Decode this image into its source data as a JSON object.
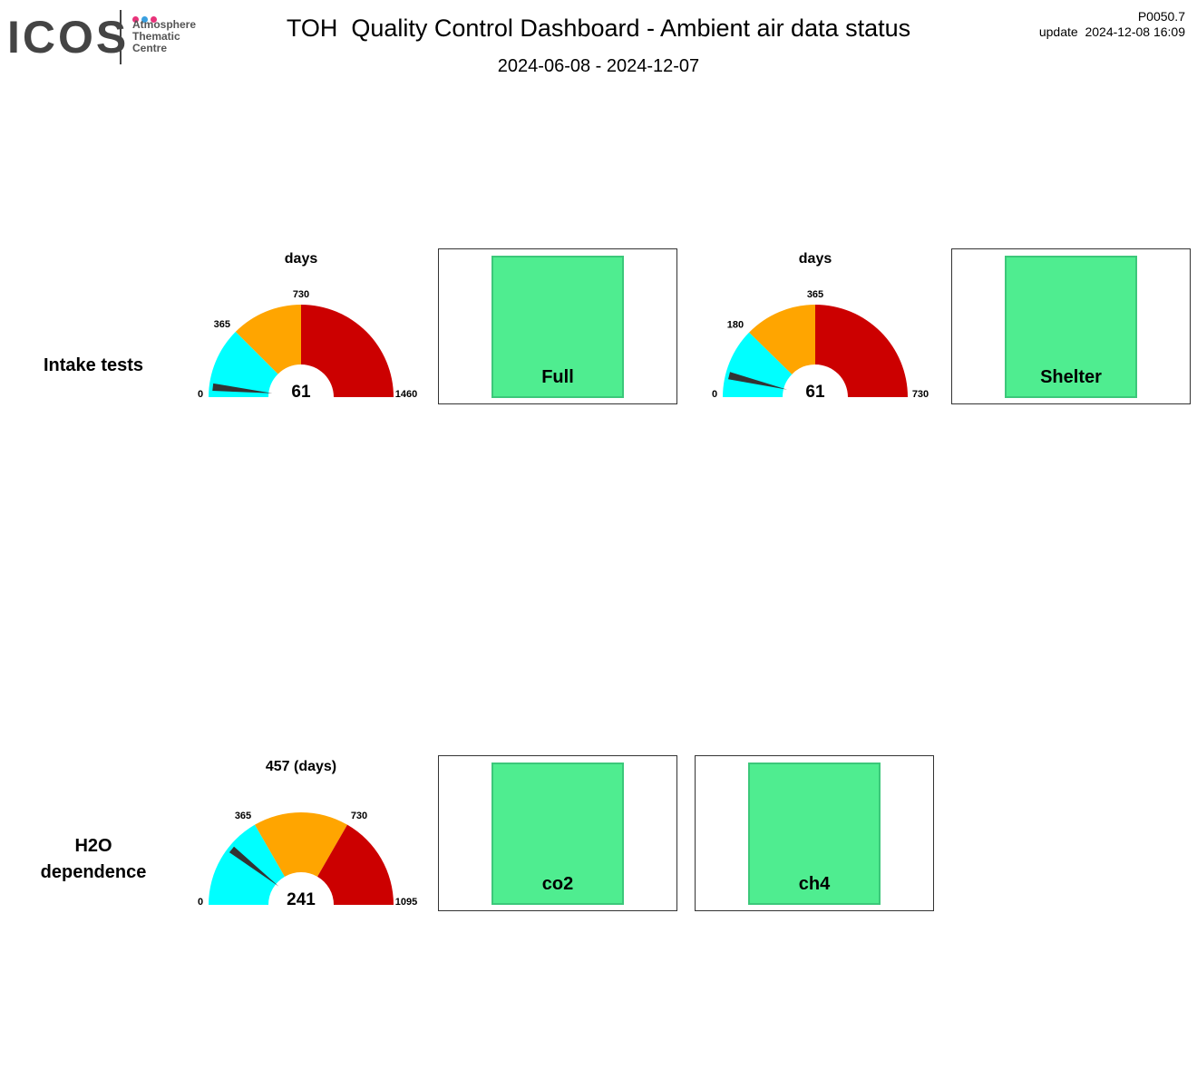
{
  "header": {
    "logo": {
      "word": "ICOS",
      "lines": [
        "Atmosphere",
        "Thematic",
        "Centre"
      ],
      "dot_colors": [
        "#e8337a",
        "#3aa0e0",
        "#e8337a"
      ]
    },
    "title": "TOH  Quality Control Dashboard - Ambient air data status",
    "period": "2024-06-08 - 2024-12-07",
    "version": "P0050.7",
    "update": "update  2024-12-08 16:09"
  },
  "colors": {
    "low": "#00ffff",
    "mid": "#ffa500",
    "high": "#cc0000",
    "ok": "#4fed90",
    "needle": "#333333"
  },
  "rows": [
    {
      "label_lines": [
        "Intake tests"
      ]
    },
    {
      "label_lines": [
        "H2O",
        "dependence"
      ]
    }
  ],
  "gauges": {
    "intake_full": {
      "title": "days",
      "value": 61,
      "value_label": "61",
      "min": 0,
      "max": 1460,
      "bands": [
        {
          "to": 365,
          "color": "low"
        },
        {
          "to": 730,
          "color": "mid"
        },
        {
          "to": 1460,
          "color": "high"
        }
      ],
      "tick_labels": {
        "min": "0",
        "t1": "365",
        "t2": "730",
        "max": "1460"
      }
    },
    "intake_shelter": {
      "title": "days",
      "value": 61,
      "value_label": "61",
      "min": 0,
      "max": 730,
      "bands": [
        {
          "to": 180,
          "color": "low"
        },
        {
          "to": 365,
          "color": "mid"
        },
        {
          "to": 730,
          "color": "high"
        }
      ],
      "tick_labels": {
        "min": "0",
        "t1": "180",
        "t2": "365",
        "max": "730"
      }
    },
    "h2o": {
      "title": "457 (days)",
      "value": 241,
      "value_label": "241",
      "min": 0,
      "max": 1095,
      "bands": [
        {
          "to": 365,
          "color": "low"
        },
        {
          "to": 730,
          "color": "mid"
        },
        {
          "to": 1095,
          "color": "high"
        }
      ],
      "tick_labels": {
        "min": "0",
        "t1": "365",
        "t2": "730",
        "max": "1095"
      }
    }
  },
  "status_boxes": {
    "full": {
      "label": "Full",
      "state": "ok"
    },
    "shelter": {
      "label": "Shelter",
      "state": "ok"
    },
    "co2": {
      "label": "co2",
      "state": "ok"
    },
    "ch4": {
      "label": "ch4",
      "state": "ok"
    }
  }
}
